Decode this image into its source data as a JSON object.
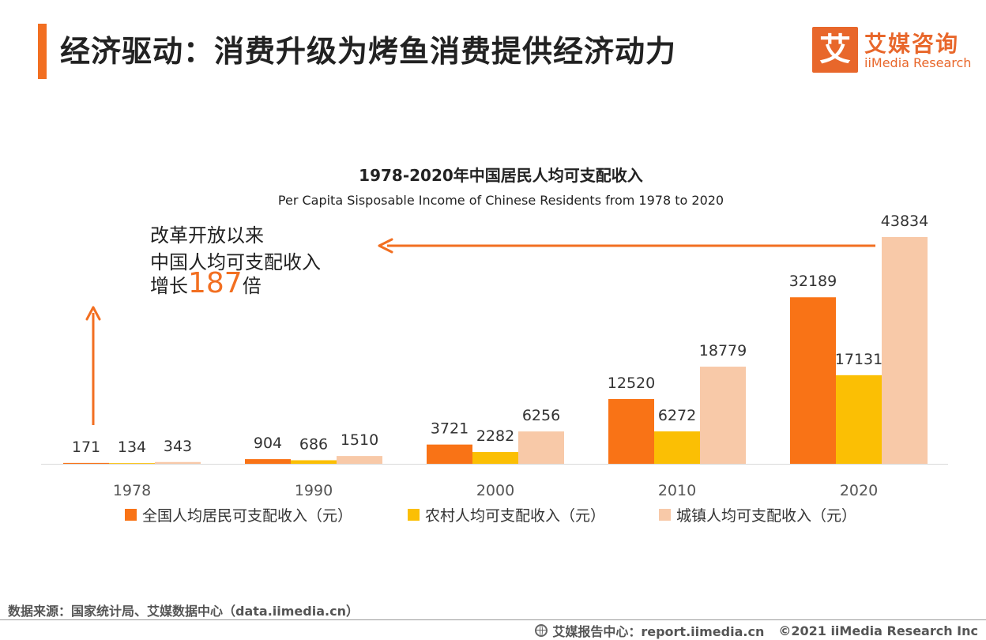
{
  "header": {
    "title": "经济驱动：消费升级为烤鱼消费提供经济动力"
  },
  "logo": {
    "mark": "艾",
    "name_cn": "艾媒咨询",
    "name_en": "iiMedia Research"
  },
  "annotation": {
    "line1": "改革开放以来",
    "line2": "中国人均可支配收入",
    "line3_prefix": "增长",
    "line3_number": "187",
    "line3_suffix": "倍"
  },
  "chart_data": {
    "type": "bar",
    "title": "1978-2020年中国居民人均可支配收入",
    "subtitle": "Per Capita Sisposable Income of Chinese Residents from 1978 to 2020",
    "xlabel": "",
    "ylabel": "",
    "ylim": [
      0,
      43834
    ],
    "grid": false,
    "legend_position": "bottom",
    "categories": [
      "1978",
      "1990",
      "2000",
      "2010",
      "2020"
    ],
    "series": [
      {
        "name": "全国人均居民可支配收入（元）",
        "color": "#f97316",
        "values": [
          171,
          904,
          3721,
          12520,
          32189
        ]
      },
      {
        "name": "农村人均可支配收入（元）",
        "color": "#fbbf04",
        "values": [
          134,
          686,
          2282,
          6272,
          17131
        ]
      },
      {
        "name": "城镇人均可支配收入（元）",
        "color": "#f8c9a8",
        "values": [
          343,
          1510,
          6256,
          18779,
          43834
        ]
      }
    ]
  },
  "colors": {
    "accent": "#f26f21",
    "arrow": "#f26f21"
  },
  "footer": {
    "source": "数据来源：国家统计局、艾媒数据中心（data.iimedia.cn）",
    "report": "艾媒报告中心：report.iimedia.cn",
    "copyright": "©2021  iiMedia Research  Inc"
  }
}
